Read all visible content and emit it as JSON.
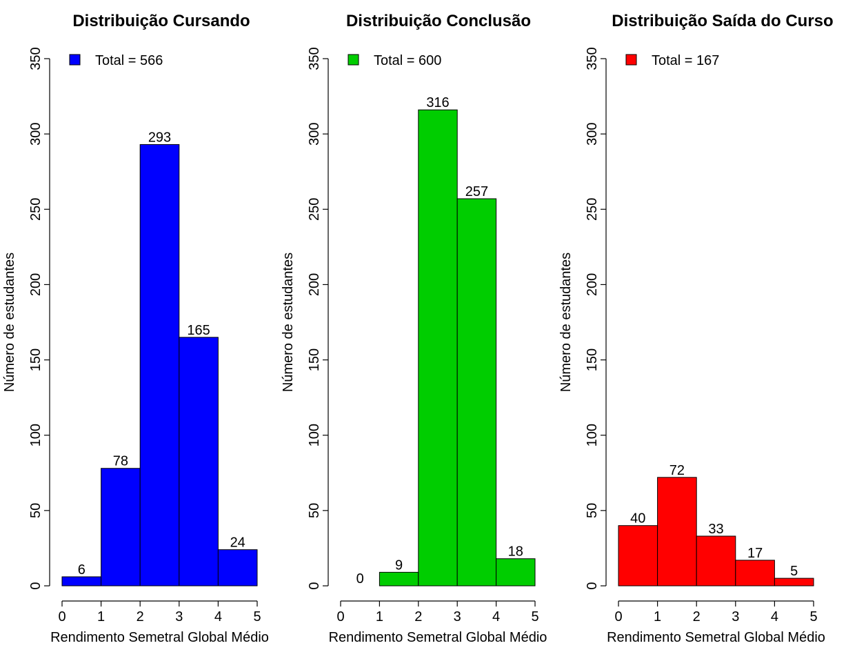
{
  "chart_data": [
    {
      "type": "bar",
      "title": "Distribuição Cursando",
      "xlabel": "Rendimento Semetral Global Médio",
      "ylabel": "Número de estudantes",
      "bins": [
        [
          0,
          1
        ],
        [
          1,
          2
        ],
        [
          2,
          3
        ],
        [
          3,
          4
        ],
        [
          4,
          5
        ]
      ],
      "values": [
        6,
        78,
        293,
        165,
        24
      ],
      "data_labels": [
        "6",
        "78",
        "293",
        "165",
        "24"
      ],
      "xlim": [
        0,
        5
      ],
      "ylim": [
        0,
        350
      ],
      "xticks": [
        "0",
        "1",
        "2",
        "3",
        "4",
        "5"
      ],
      "yticks": [
        "0",
        "50",
        "100",
        "150",
        "200",
        "250",
        "300",
        "350"
      ],
      "legend": "Total = 566",
      "legend_position": "top-left",
      "color": "#0000FF",
      "grid": false
    },
    {
      "type": "bar",
      "title": "Distribuição Conclusão",
      "xlabel": "Rendimento Semetral Global Médio",
      "ylabel": "Número de estudantes",
      "bins": [
        [
          0,
          1
        ],
        [
          1,
          2
        ],
        [
          2,
          3
        ],
        [
          3,
          4
        ],
        [
          4,
          5
        ]
      ],
      "values": [
        0,
        9,
        316,
        257,
        18
      ],
      "data_labels": [
        "0",
        "9",
        "316",
        "257",
        "18"
      ],
      "xlim": [
        0,
        5
      ],
      "ylim": [
        0,
        350
      ],
      "xticks": [
        "0",
        "1",
        "2",
        "3",
        "4",
        "5"
      ],
      "yticks": [
        "0",
        "50",
        "100",
        "150",
        "200",
        "250",
        "300",
        "350"
      ],
      "legend": "Total = 600",
      "legend_position": "top-left",
      "color": "#00CD00",
      "grid": false
    },
    {
      "type": "bar",
      "title": "Distribuição Saída do Curso",
      "xlabel": "Rendimento Semetral Global Médio",
      "ylabel": "Número de estudantes",
      "bins": [
        [
          0,
          1
        ],
        [
          1,
          2
        ],
        [
          2,
          3
        ],
        [
          3,
          4
        ],
        [
          4,
          5
        ]
      ],
      "values": [
        40,
        72,
        33,
        17,
        5
      ],
      "data_labels": [
        "40",
        "72",
        "33",
        "17",
        "5"
      ],
      "xlim": [
        0,
        5
      ],
      "ylim": [
        0,
        350
      ],
      "xticks": [
        "0",
        "1",
        "2",
        "3",
        "4",
        "5"
      ],
      "yticks": [
        "0",
        "50",
        "100",
        "150",
        "200",
        "250",
        "300",
        "350"
      ],
      "legend": "Total = 167",
      "legend_position": "top-left",
      "color": "#FF0000",
      "grid": false
    }
  ]
}
